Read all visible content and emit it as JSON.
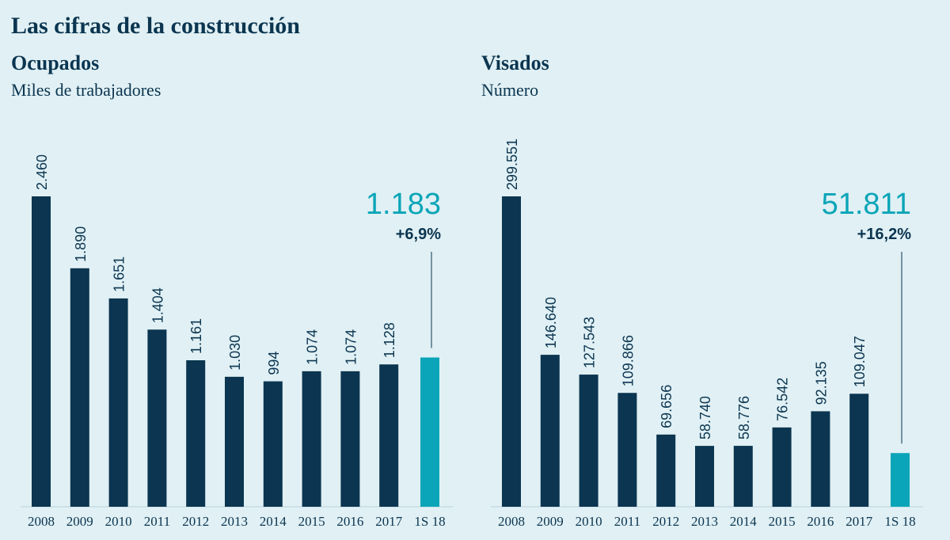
{
  "title": "Las cifras de la construcción",
  "chart_data": [
    {
      "type": "bar",
      "title": "Ocupados",
      "subtitle": "Miles de trabajadores",
      "categories": [
        "2008",
        "2009",
        "2010",
        "2011",
        "2012",
        "2013",
        "2014",
        "2015",
        "2016",
        "2017",
        "1S 18"
      ],
      "values": [
        2460,
        1890,
        1651,
        1404,
        1161,
        1030,
        994,
        1074,
        1074,
        1128,
        1183
      ],
      "value_labels": [
        "2.460",
        "1.890",
        "1.651",
        "1.404",
        "1.161",
        "1.030",
        "994",
        "1.074",
        "1.074",
        "1.128",
        "1.183"
      ],
      "colors": [
        "#0b3550",
        "#0b3550",
        "#0b3550",
        "#0b3550",
        "#0b3550",
        "#0b3550",
        "#0b3550",
        "#0b3550",
        "#0b3550",
        "#0b3550",
        "#0aa5b8"
      ],
      "annotation": "+6,9%"
    },
    {
      "type": "bar",
      "title": "Visados",
      "subtitle": "Número",
      "categories": [
        "2008",
        "2009",
        "2010",
        "2011",
        "2012",
        "2013",
        "2014",
        "2015",
        "2016",
        "2017",
        "1S 18"
      ],
      "values": [
        299551,
        146640,
        127543,
        109866,
        69656,
        58740,
        58776,
        76542,
        92135,
        109047,
        51811
      ],
      "value_labels": [
        "299.551",
        "146.640",
        "127.543",
        "109.866",
        "69.656",
        "58.740",
        "58.776",
        "76.542",
        "92.135",
        "109.047",
        "51.811"
      ],
      "colors": [
        "#0b3550",
        "#0b3550",
        "#0b3550",
        "#0b3550",
        "#0b3550",
        "#0b3550",
        "#0b3550",
        "#0b3550",
        "#0b3550",
        "#0b3550",
        "#0aa5b8"
      ],
      "annotation": "+16,2%"
    }
  ]
}
